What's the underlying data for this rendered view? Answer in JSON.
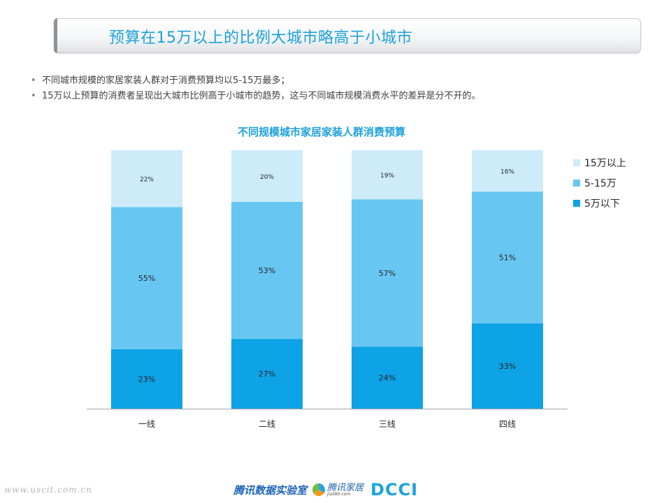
{
  "slide": {
    "title": "预算在15万以上的比例大城市略高于小城市",
    "bullets": [
      "不同城市规模的家居家装人群对于消费预算均以5-15万最多；",
      "15万以上预算的消费者呈现出大城市比例高于小城市的趋势，这与不同城市规模消费水平的差异是分不开的。"
    ],
    "bullet_symbol": "•"
  },
  "chart_data": {
    "type": "bar",
    "stacked": true,
    "title": "不同规模城市家居家装人群消费预算",
    "categories": [
      "一线",
      "二线",
      "三线",
      "四线"
    ],
    "series": [
      {
        "name": "5万以下",
        "values": [
          23,
          27,
          24,
          33
        ],
        "labels": [
          "23%",
          "27%",
          "24%",
          "33%"
        ],
        "color": "#0ea2e6"
      },
      {
        "name": "5-15万",
        "values": [
          55,
          53,
          57,
          51
        ],
        "labels": [
          "55%",
          "53%",
          "57%",
          "51%"
        ],
        "color": "#68c6f2"
      },
      {
        "name": "15万以上",
        "values": [
          22,
          20,
          19,
          16
        ],
        "labels": [
          "22%",
          "20%",
          "19%",
          "16%"
        ],
        "color": "#cdebf9"
      }
    ],
    "ylim": [
      0,
      100
    ],
    "legend_position": "right",
    "legend_order": [
      "15万以上",
      "5-15万",
      "5万以下"
    ],
    "grid": false
  },
  "footer": {
    "watermark": "www.uscit.com.cn",
    "logo_lab": "腾讯数据实验室",
    "logo_jiaju_main": "腾讯家居",
    "logo_jiaju_sub": "jia360.com",
    "logo_dcci": "DCCI"
  }
}
